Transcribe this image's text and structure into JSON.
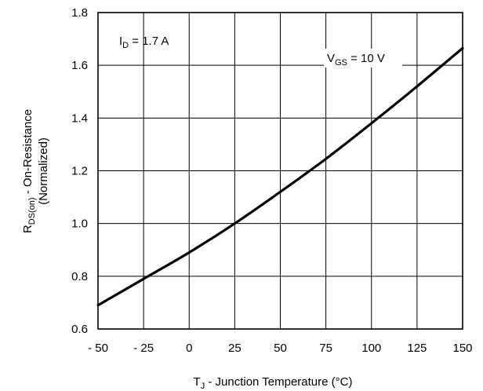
{
  "chart_data": {
    "type": "line",
    "title": "",
    "xlabel": {
      "main": "T",
      "sub": "J",
      "rest": " - Junction Temperature (°C)"
    },
    "ylabel": {
      "main": "R",
      "sub": "DS(on)",
      "rest": " - On-Resistance",
      "line2": "(Normalized)"
    },
    "xlim": [
      -50,
      150
    ],
    "ylim": [
      0.6,
      1.8
    ],
    "xticks": [
      -50,
      -25,
      0,
      25,
      50,
      75,
      100,
      125,
      150
    ],
    "xtick_labels": [
      "- 50",
      "- 25",
      "0",
      "25",
      "50",
      "75",
      "100",
      "125",
      "150"
    ],
    "yticks": [
      0.6,
      0.8,
      1.0,
      1.2,
      1.4,
      1.6,
      1.8
    ],
    "ytick_labels": [
      "0.6",
      "0.8",
      "1.0",
      "1.2",
      "1.4",
      "1.6",
      "1.8"
    ],
    "grid": true,
    "annotations": [
      {
        "main": "I",
        "sub": "D",
        "rest": " = 1.7 A"
      },
      {
        "main": "V",
        "sub": "GS",
        "rest": " = 10 V"
      }
    ],
    "series": [
      {
        "x": [
          -50,
          -25,
          0,
          25,
          50,
          75,
          100,
          125,
          150
        ],
        "y": [
          0.69,
          0.79,
          0.89,
          1.0,
          1.12,
          1.245,
          1.38,
          1.52,
          1.665
        ]
      }
    ]
  }
}
